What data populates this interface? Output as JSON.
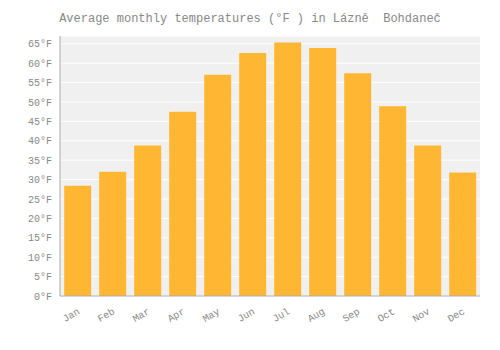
{
  "chart_data": {
    "type": "bar",
    "title": "Average monthly temperatures (°F ) in Lázně  Bohdaneč",
    "categories": [
      "Jan",
      "Feb",
      "Mar",
      "Apr",
      "May",
      "Jun",
      "Jul",
      "Aug",
      "Sep",
      "Oct",
      "Nov",
      "Dec"
    ],
    "values": [
      28.4,
      32.0,
      38.8,
      47.5,
      57.0,
      62.6,
      65.3,
      63.9,
      57.4,
      48.9,
      38.8,
      31.8
    ],
    "color": "#FFB733",
    "ylim": [
      0,
      67
    ],
    "yticks": [
      {
        "value": 0,
        "label": "0°F"
      },
      {
        "value": 5,
        "label": "5°F"
      },
      {
        "value": 10,
        "label": "10°F"
      },
      {
        "value": 15,
        "label": "15°F"
      },
      {
        "value": 20,
        "label": "20°F"
      },
      {
        "value": 25,
        "label": "25°F"
      },
      {
        "value": 30,
        "label": "30°F"
      },
      {
        "value": 35,
        "label": "35°F"
      },
      {
        "value": 40,
        "label": "40°F"
      },
      {
        "value": 45,
        "label": "45°F"
      },
      {
        "value": 50,
        "label": "50°F"
      },
      {
        "value": 55,
        "label": "55°F"
      },
      {
        "value": 60,
        "label": "60°F"
      },
      {
        "value": 65,
        "label": "65°F"
      }
    ],
    "grid": true
  }
}
